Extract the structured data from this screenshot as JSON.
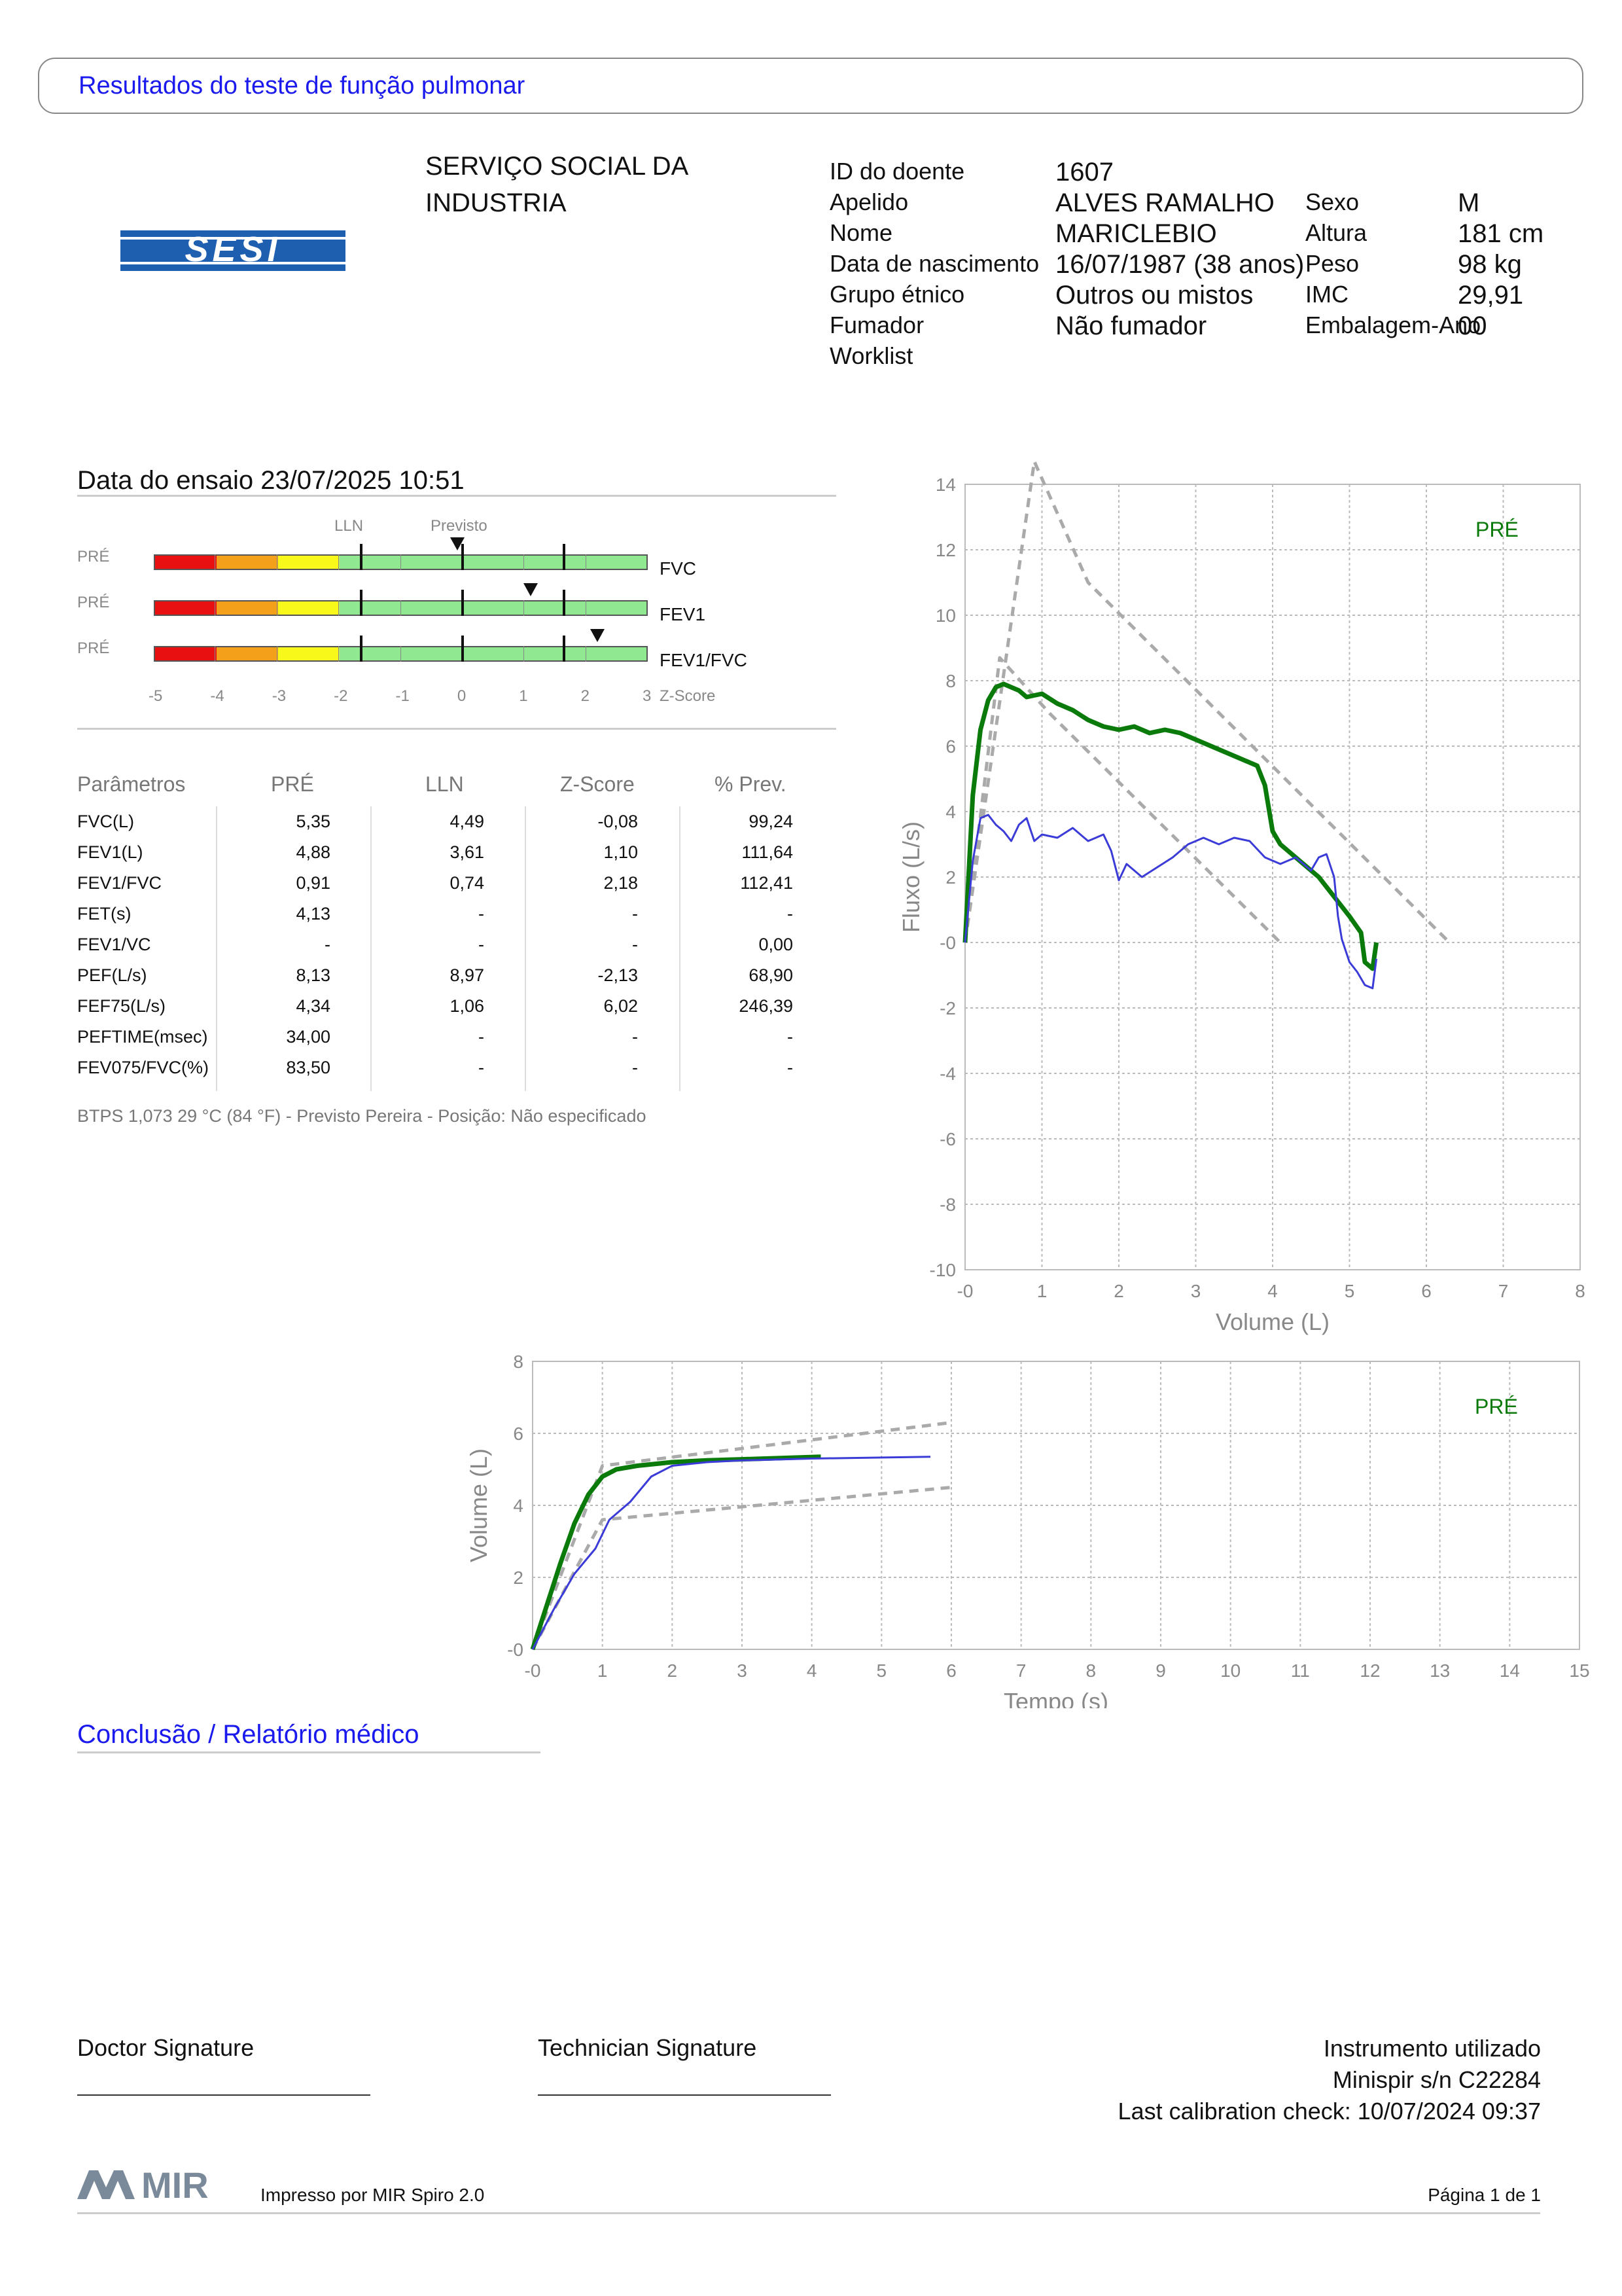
{
  "header": {
    "title": "Resultados do teste de função pulmonar"
  },
  "organization": {
    "line1": "SERVIÇO SOCIAL DA",
    "line2": "INDUSTRIA",
    "logo_text": "SESI"
  },
  "patient": {
    "labels": {
      "id": "ID do doente",
      "surname": "Apelido",
      "name": "Nome",
      "dob": "Data de nascimento",
      "ethnic": "Grupo étnico",
      "smoker": "Fumador",
      "worklist": "Worklist",
      "sex": "Sexo",
      "height": "Altura",
      "weight": "Peso",
      "bmi": "IMC",
      "packyears": "Embalagem-Ano"
    },
    "values": {
      "id": "1607",
      "surname": "ALVES RAMALHO",
      "name": "MARICLEBIO",
      "dob": "16/07/1987 (38 anos)",
      "ethnic": "Outros ou mistos",
      "smoker": "Não fumador",
      "worklist": "",
      "sex": "M",
      "height": "181 cm",
      "weight": "98 kg",
      "bmi": "29,91",
      "packyears": "00"
    }
  },
  "test": {
    "date_line": "Data do ensaio 23/07/2025 10:51"
  },
  "zscore": {
    "lln_label": "LLN",
    "pred_label": "Previsto",
    "axis_caption": "Z-Score",
    "ticks": [
      "-5",
      "-4",
      "-3",
      "-2",
      "-1",
      "0",
      "1",
      "2",
      "3"
    ],
    "rows": [
      {
        "tag": "PRÉ",
        "name": "FVC",
        "z": -0.08
      },
      {
        "tag": "PRÉ",
        "name": "FEV1",
        "z": 1.1
      },
      {
        "tag": "PRÉ",
        "name": "FEV1/FVC",
        "z": 2.18
      }
    ]
  },
  "params": {
    "headers": [
      "Parâmetros",
      "PRÉ",
      "LLN",
      "Z-Score",
      "% Prev."
    ],
    "rows": [
      [
        "FVC(L)",
        "5,35",
        "4,49",
        "-0,08",
        "99,24"
      ],
      [
        "FEV1(L)",
        "4,88",
        "3,61",
        "1,10",
        "111,64"
      ],
      [
        "FEV1/FVC",
        "0,91",
        "0,74",
        "2,18",
        "112,41"
      ],
      [
        "FET(s)",
        "4,13",
        "-",
        "-",
        "-"
      ],
      [
        "FEV1/VC",
        "-",
        "-",
        "-",
        "0,00"
      ],
      [
        "PEF(L/s)",
        "8,13",
        "8,97",
        "-2,13",
        "68,90"
      ],
      [
        "FEF75(L/s)",
        "4,34",
        "1,06",
        "6,02",
        "246,39"
      ],
      [
        "PEFTIME(msec)",
        "34,00",
        "-",
        "-",
        "-"
      ],
      [
        "FEV075/FVC(%)",
        "83,50",
        "-",
        "-",
        "-"
      ]
    ],
    "footnote": "BTPS 1,073 29 °C (84 °F) - Previsto Pereira - Posição: Não especificado"
  },
  "chart_data": [
    {
      "type": "line",
      "title": "",
      "xlabel": "Volume (L)",
      "ylabel": "Fluxo (L/s)",
      "xlim": [
        0,
        8
      ],
      "ylim": [
        -10,
        14
      ],
      "x_ticks": [
        "-0",
        "1",
        "2",
        "3",
        "4",
        "5",
        "6",
        "7",
        "8"
      ],
      "y_ticks": [
        "14",
        "12",
        "10",
        "8",
        "6",
        "4",
        "2",
        "-0",
        "-2",
        "-4",
        "-6",
        "-8",
        "-10"
      ],
      "legend": [
        "PRÉ"
      ],
      "series": [
        {
          "name": "PRÉ",
          "color": "#0a7a0a",
          "points": [
            [
              0,
              0
            ],
            [
              0.1,
              4.5
            ],
            [
              0.2,
              6.5
            ],
            [
              0.3,
              7.4
            ],
            [
              0.4,
              7.8
            ],
            [
              0.5,
              7.9
            ],
            [
              0.6,
              7.8
            ],
            [
              0.7,
              7.7
            ],
            [
              0.8,
              7.5
            ],
            [
              1.0,
              7.6
            ],
            [
              1.2,
              7.3
            ],
            [
              1.4,
              7.1
            ],
            [
              1.6,
              6.8
            ],
            [
              1.8,
              6.6
            ],
            [
              2.0,
              6.5
            ],
            [
              2.2,
              6.6
            ],
            [
              2.4,
              6.4
            ],
            [
              2.6,
              6.5
            ],
            [
              2.8,
              6.4
            ],
            [
              3.0,
              6.2
            ],
            [
              3.2,
              6.0
            ],
            [
              3.4,
              5.8
            ],
            [
              3.6,
              5.6
            ],
            [
              3.8,
              5.4
            ],
            [
              3.9,
              4.8
            ],
            [
              4.0,
              3.4
            ],
            [
              4.1,
              3.0
            ],
            [
              4.3,
              2.6
            ],
            [
              4.6,
              2.0
            ],
            [
              4.8,
              1.4
            ],
            [
              5.0,
              0.8
            ],
            [
              5.15,
              0.3
            ],
            [
              5.2,
              -0.6
            ],
            [
              5.3,
              -0.8
            ],
            [
              5.35,
              0
            ]
          ]
        },
        {
          "name": "",
          "color": "#3b3bd8",
          "points": [
            [
              0,
              0
            ],
            [
              0.1,
              2.5
            ],
            [
              0.2,
              3.8
            ],
            [
              0.3,
              3.9
            ],
            [
              0.4,
              3.6
            ],
            [
              0.5,
              3.4
            ],
            [
              0.6,
              3.1
            ],
            [
              0.7,
              3.6
            ],
            [
              0.8,
              3.8
            ],
            [
              0.9,
              3.1
            ],
            [
              1.0,
              3.3
            ],
            [
              1.2,
              3.2
            ],
            [
              1.4,
              3.5
            ],
            [
              1.6,
              3.1
            ],
            [
              1.8,
              3.3
            ],
            [
              1.9,
              2.8
            ],
            [
              2.0,
              1.9
            ],
            [
              2.1,
              2.4
            ],
            [
              2.3,
              2.0
            ],
            [
              2.5,
              2.3
            ],
            [
              2.7,
              2.6
            ],
            [
              2.9,
              3.0
            ],
            [
              3.1,
              3.2
            ],
            [
              3.3,
              3.0
            ],
            [
              3.5,
              3.2
            ],
            [
              3.7,
              3.1
            ],
            [
              3.9,
              2.6
            ],
            [
              4.1,
              2.4
            ],
            [
              4.3,
              2.6
            ],
            [
              4.5,
              2.2
            ],
            [
              4.6,
              2.6
            ],
            [
              4.7,
              2.7
            ],
            [
              4.8,
              2.0
            ],
            [
              4.85,
              0.8
            ],
            [
              4.9,
              0.1
            ],
            [
              5.0,
              -0.6
            ],
            [
              5.1,
              -0.9
            ],
            [
              5.2,
              -1.3
            ],
            [
              5.3,
              -1.4
            ],
            [
              5.35,
              -0.5
            ]
          ]
        },
        {
          "name": "",
          "color": "#aaaaaa",
          "dashed": true,
          "points": [
            [
              0,
              0
            ],
            [
              0.45,
              8.7
            ],
            [
              1.1,
              7.0
            ],
            [
              4.1,
              0
            ]
          ]
        },
        {
          "name": "",
          "color": "#aaaaaa",
          "dashed": true,
          "points": [
            [
              0,
              0
            ],
            [
              0.9,
              14.7
            ],
            [
              1.6,
              11.0
            ],
            [
              6.3,
              0
            ]
          ]
        }
      ]
    },
    {
      "type": "line",
      "title": "",
      "xlabel": "Tempo (s)",
      "ylabel": "Volume (L)",
      "xlim": [
        0,
        15
      ],
      "ylim": [
        0,
        8
      ],
      "x_ticks": [
        "-0",
        "1",
        "2",
        "3",
        "4",
        "5",
        "6",
        "7",
        "8",
        "9",
        "10",
        "11",
        "12",
        "13",
        "14",
        "15"
      ],
      "y_ticks": [
        "8",
        "6",
        "4",
        "2",
        "-0"
      ],
      "legend": [
        "PRÉ"
      ],
      "series": [
        {
          "name": "PRÉ",
          "color": "#0a7a0a",
          "points": [
            [
              0,
              0
            ],
            [
              0.2,
              1.2
            ],
            [
              0.4,
              2.4
            ],
            [
              0.6,
              3.5
            ],
            [
              0.8,
              4.3
            ],
            [
              1.0,
              4.8
            ],
            [
              1.2,
              5.0
            ],
            [
              1.5,
              5.1
            ],
            [
              2.0,
              5.2
            ],
            [
              2.5,
              5.25
            ],
            [
              3.0,
              5.28
            ],
            [
              4.13,
              5.35
            ]
          ]
        },
        {
          "name": "",
          "color": "#3b3bd8",
          "points": [
            [
              0,
              0
            ],
            [
              0.3,
              1.1
            ],
            [
              0.6,
              2.1
            ],
            [
              0.9,
              2.8
            ],
            [
              1.1,
              3.6
            ],
            [
              1.4,
              4.1
            ],
            [
              1.7,
              4.8
            ],
            [
              2.0,
              5.1
            ],
            [
              2.5,
              5.2
            ],
            [
              3.0,
              5.25
            ],
            [
              4.0,
              5.3
            ],
            [
              5.7,
              5.35
            ]
          ]
        },
        {
          "name": "",
          "color": "#aaaaaa",
          "dashed": true,
          "points": [
            [
              0,
              0
            ],
            [
              1.0,
              5.1
            ],
            [
              6.0,
              6.3
            ]
          ]
        },
        {
          "name": "",
          "color": "#aaaaaa",
          "dashed": true,
          "points": [
            [
              0,
              0
            ],
            [
              1.0,
              3.6
            ],
            [
              6.0,
              4.5
            ]
          ]
        }
      ]
    }
  ],
  "conclusion": {
    "title": "Conclusão / Relatório médico"
  },
  "signatures": {
    "doctor": "Doctor Signature",
    "technician": "Technician Signature"
  },
  "instrument": {
    "line1": "Instrumento utilizado",
    "line2": "Minispir s/n C22284",
    "line3": "Last calibration check: 10/07/2024 09:37"
  },
  "footer": {
    "brand": "MIR",
    "printed_by": "Impresso por MIR Spiro 2.0",
    "page": "Página 1 de 1"
  }
}
